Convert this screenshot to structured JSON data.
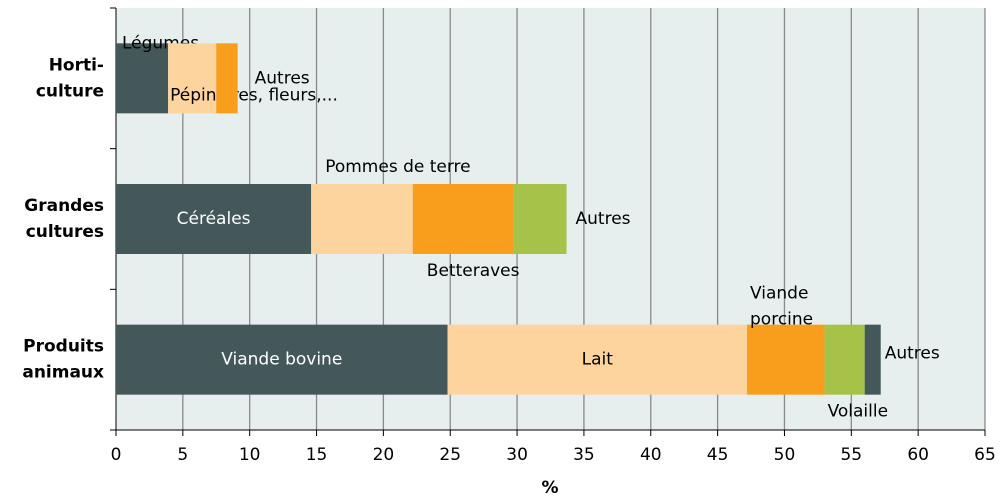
{
  "chart_data": {
    "type": "stacked-bar-horizontal",
    "xlabel": "%",
    "xlim": [
      0,
      65
    ],
    "xticks": [
      0,
      5,
      10,
      15,
      20,
      25,
      30,
      35,
      40,
      45,
      50,
      55,
      60,
      65
    ],
    "grid": true,
    "categories": [
      [
        "Horti-",
        "culture"
      ],
      [
        "Grandes",
        "cultures"
      ],
      [
        "Produits",
        "animaux"
      ]
    ],
    "bars": [
      {
        "segments": [
          {
            "label": "Légumes",
            "value": 3.9,
            "color": "#44585a"
          },
          {
            "label": "Pépinières, fleurs,...",
            "value": 3.6,
            "color": "#fdd49e"
          },
          {
            "label": "Autres",
            "value": 1.6,
            "color": "#f99d1c"
          }
        ]
      },
      {
        "segments": [
          {
            "label": "Céréales",
            "value": 14.6,
            "color": "#44585a"
          },
          {
            "label": "Pommes de terre",
            "value": 7.6,
            "color": "#fdd49e"
          },
          {
            "label": "Betteraves",
            "value": 7.5,
            "color": "#f99d1c"
          },
          {
            "label": "Autres",
            "value": 4.0,
            "color": "#a6c349"
          }
        ]
      },
      {
        "segments": [
          {
            "label": "Viande bovine",
            "value": 24.8,
            "color": "#44585a"
          },
          {
            "label": "Lait",
            "value": 22.4,
            "color": "#fdd49e"
          },
          {
            "label": [
              "Viande",
              "porcine"
            ],
            "value": 5.8,
            "color": "#f99d1c"
          },
          {
            "label": "Volaille",
            "value": 3.0,
            "color": "#a6c349"
          },
          {
            "label": "Autres",
            "value": 1.2,
            "color": "#44585a"
          }
        ]
      }
    ]
  }
}
